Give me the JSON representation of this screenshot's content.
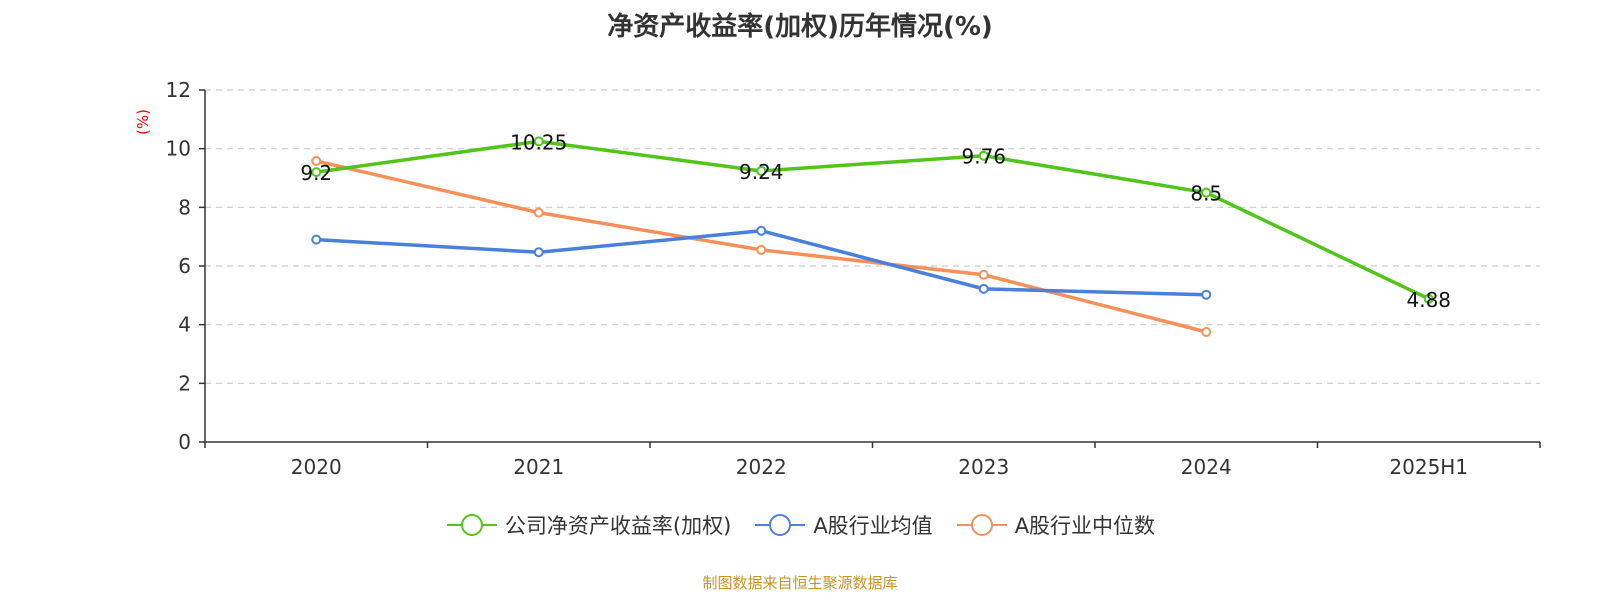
{
  "chart_data": {
    "type": "line",
    "title": "净资产收益率(加权)历年情况(%)",
    "ylabel": "(%)",
    "ylabel_color": "#ff0000",
    "ylim": [
      0,
      12
    ],
    "yticks": [
      0,
      2,
      4,
      6,
      8,
      10,
      12
    ],
    "grid": "horizontal dashed",
    "categories": [
      "2020",
      "2021",
      "2022",
      "2023",
      "2024",
      "2025H1"
    ],
    "series": [
      {
        "name": "公司净资产收益率(加权)",
        "color": "#52c41a",
        "values": [
          9.2,
          10.25,
          9.24,
          9.76,
          8.5,
          4.88
        ],
        "data_labels": [
          "9.2",
          "10.25",
          "9.24",
          "9.76",
          "8.5",
          "4.88"
        ]
      },
      {
        "name": "A股行业均值",
        "color": "#4a7fdc",
        "values": [
          6.9,
          6.47,
          7.2,
          5.22,
          5.02,
          null
        ]
      },
      {
        "name": "A股行业中位数",
        "color": "#f5905a",
        "values": [
          9.58,
          7.82,
          6.55,
          5.7,
          3.75,
          null
        ]
      }
    ],
    "legend_position": "bottom-center"
  },
  "source_text": "制图数据来自恒生聚源数据库",
  "source_color": "#c8922a"
}
